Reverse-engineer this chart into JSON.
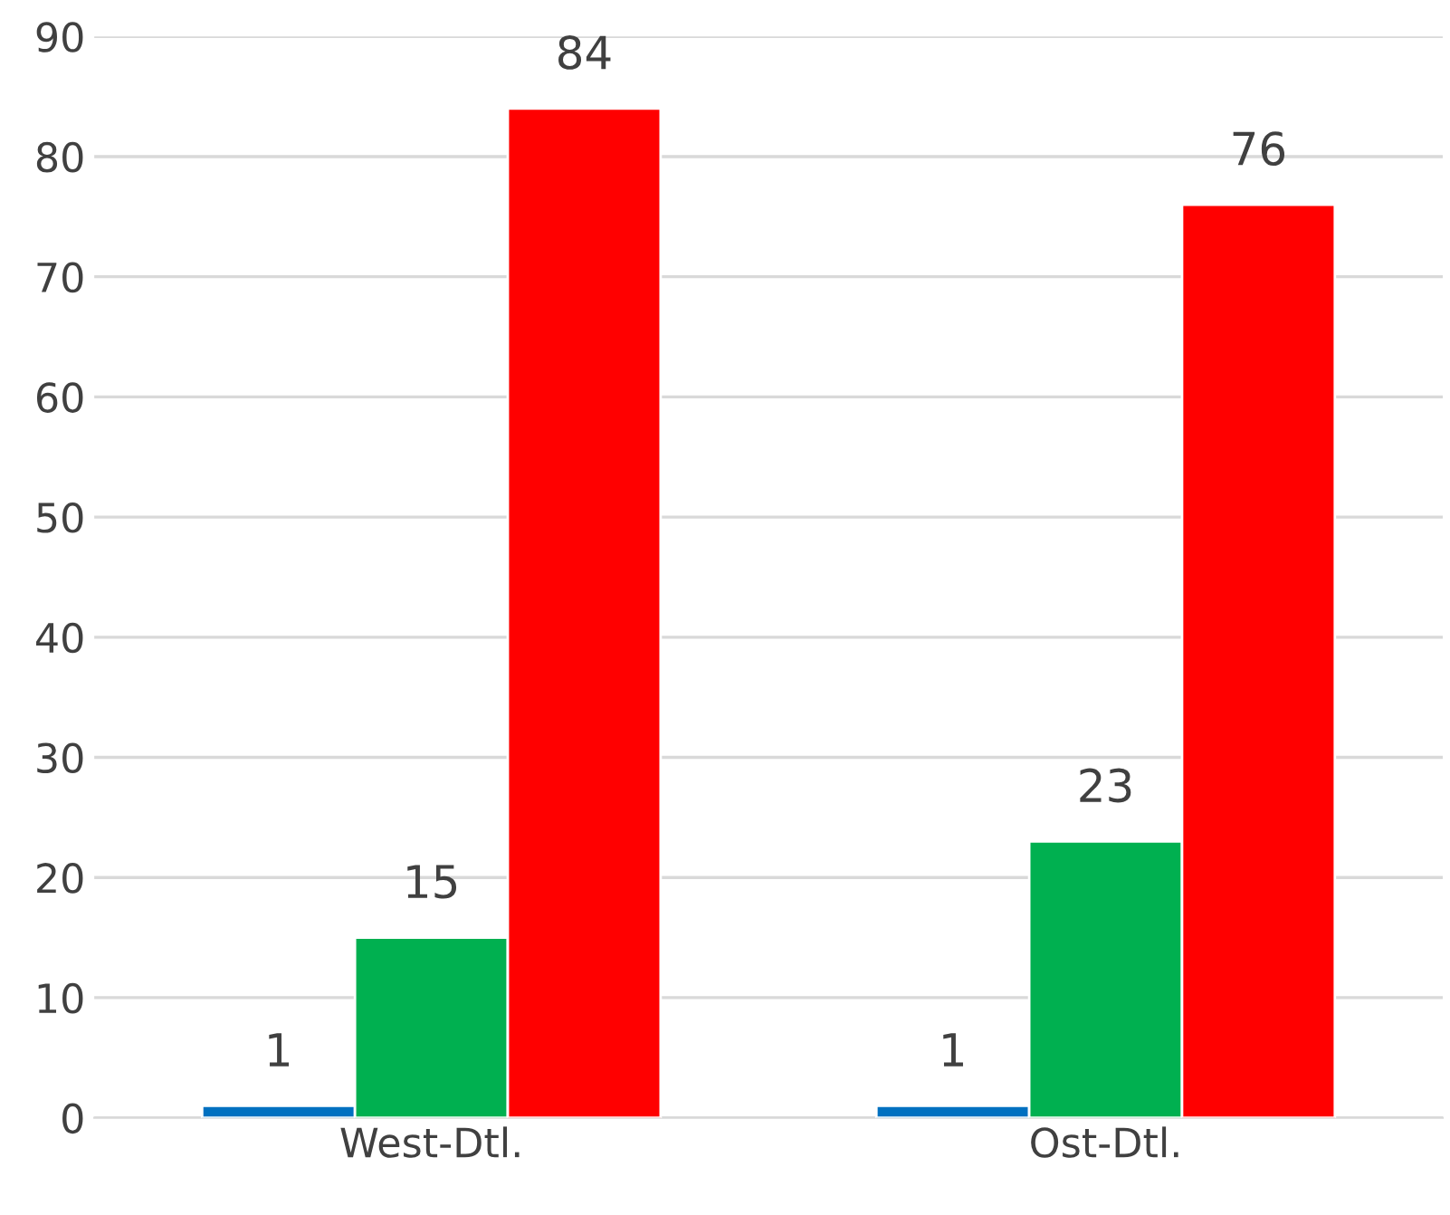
{
  "chart_data": {
    "type": "bar",
    "categories": [
      "West-Dtl.",
      "Ost-Dtl."
    ],
    "series": [
      {
        "color": "#0070c0",
        "values": [
          1,
          1
        ]
      },
      {
        "color": "#00b050",
        "values": [
          15,
          23
        ]
      },
      {
        "color": "#ff0000",
        "values": [
          84,
          76
        ]
      }
    ],
    "ylim": [
      0,
      90
    ],
    "yticks": [
      0,
      10,
      20,
      30,
      40,
      50,
      60,
      70,
      80,
      90
    ],
    "grid": "y",
    "data_labels": true
  }
}
